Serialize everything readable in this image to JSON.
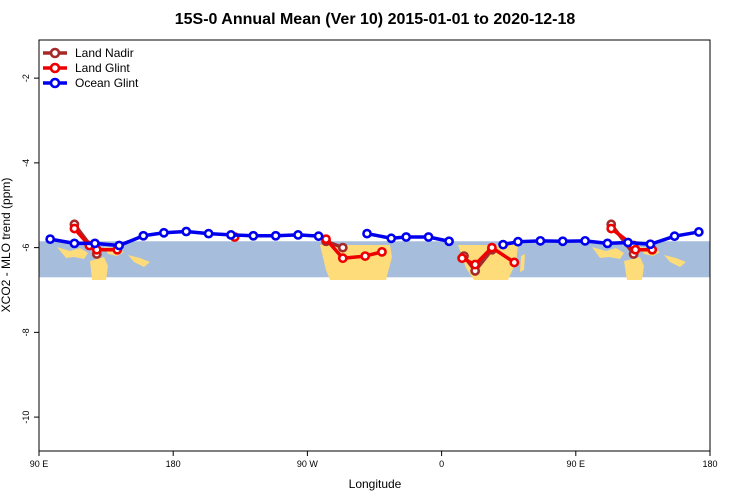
{
  "chart_data": {
    "type": "line",
    "title": "15S-0 Annual Mean (Ver 10)   2015-01-01 to 2020-12-18",
    "xlabel": "Longitude",
    "ylabel": "XCO2 - MLO trend (ppm)",
    "xlim": [
      0,
      360
    ],
    "ylim": [
      -10.8,
      -1.1
    ],
    "x_ticks": [
      {
        "value": 0,
        "label": "90 E"
      },
      {
        "value": 72,
        "label": "180"
      },
      {
        "value": 144,
        "label": "90 W"
      },
      {
        "value": 216,
        "label": "0"
      },
      {
        "value": 288,
        "label": "90 E"
      },
      {
        "value": 360,
        "label": "180"
      }
    ],
    "y_ticks": [
      {
        "value": -2,
        "label": "-2"
      },
      {
        "value": -4,
        "label": "-4"
      },
      {
        "value": -6,
        "label": "-6"
      },
      {
        "value": -8,
        "label": "-8"
      },
      {
        "value": -10,
        "label": "-10"
      }
    ],
    "grid": false,
    "legend_position": "top-left",
    "background_band": {
      "y_from": -5.85,
      "y_to": -6.7,
      "color": "#a6bddb"
    },
    "land_color": "#fddc79",
    "series": [
      {
        "name": "Land Nadir",
        "color": "#a52a2a",
        "segments": [
          [
            [
              19,
              -5.45
            ],
            [
              31,
              -6.15
            ]
          ],
          [
            [
              154,
              -5.85
            ],
            [
              163,
              -6.0
            ]
          ],
          [
            [
              228,
              -6.2
            ],
            [
              234,
              -6.55
            ],
            [
              243,
              -6.05
            ]
          ],
          [
            [
              307,
              -5.45
            ],
            [
              319,
              -6.15
            ]
          ]
        ]
      },
      {
        "name": "Land Glint",
        "color": "#ee0000",
        "segments": [
          [
            [
              19,
              -5.55
            ],
            [
              27,
              -5.95
            ],
            [
              31,
              -6.05
            ],
            [
              42,
              -6.05
            ]
          ],
          [
            [
              105,
              -5.75
            ]
          ],
          [
            [
              154,
              -5.8
            ],
            [
              163,
              -6.25
            ],
            [
              175,
              -6.2
            ],
            [
              184,
              -6.1
            ]
          ],
          [
            [
              227,
              -6.25
            ],
            [
              234,
              -6.4
            ],
            [
              243,
              -6.0
            ],
            [
              255,
              -6.35
            ]
          ],
          [
            [
              307,
              -5.55
            ],
            [
              319,
              -5.95
            ],
            [
              320,
              -6.05
            ],
            [
              329,
              -6.05
            ]
          ]
        ]
      },
      {
        "name": "Ocean Glint",
        "color": "#0000ee",
        "segments": [
          [
            [
              6,
              -5.8
            ],
            [
              19,
              -5.9
            ],
            [
              30,
              -5.9
            ],
            [
              43,
              -5.95
            ],
            [
              56,
              -5.72
            ],
            [
              67,
              -5.65
            ],
            [
              79,
              -5.62
            ],
            [
              91,
              -5.67
            ],
            [
              103,
              -5.7
            ],
            [
              115,
              -5.72
            ],
            [
              127,
              -5.72
            ],
            [
              139,
              -5.7
            ],
            [
              150,
              -5.73
            ]
          ],
          [
            [
              176,
              -5.67
            ],
            [
              189,
              -5.78
            ],
            [
              197,
              -5.75
            ],
            [
              209,
              -5.75
            ],
            [
              220,
              -5.85
            ]
          ],
          [
            [
              249,
              -5.93
            ],
            [
              257,
              -5.86
            ],
            [
              269,
              -5.84
            ],
            [
              281,
              -5.85
            ],
            [
              293,
              -5.84
            ],
            [
              305,
              -5.9
            ],
            [
              316,
              -5.88
            ],
            [
              328,
              -5.92
            ],
            [
              341,
              -5.73
            ],
            [
              354,
              -5.63
            ]
          ]
        ]
      }
    ]
  }
}
